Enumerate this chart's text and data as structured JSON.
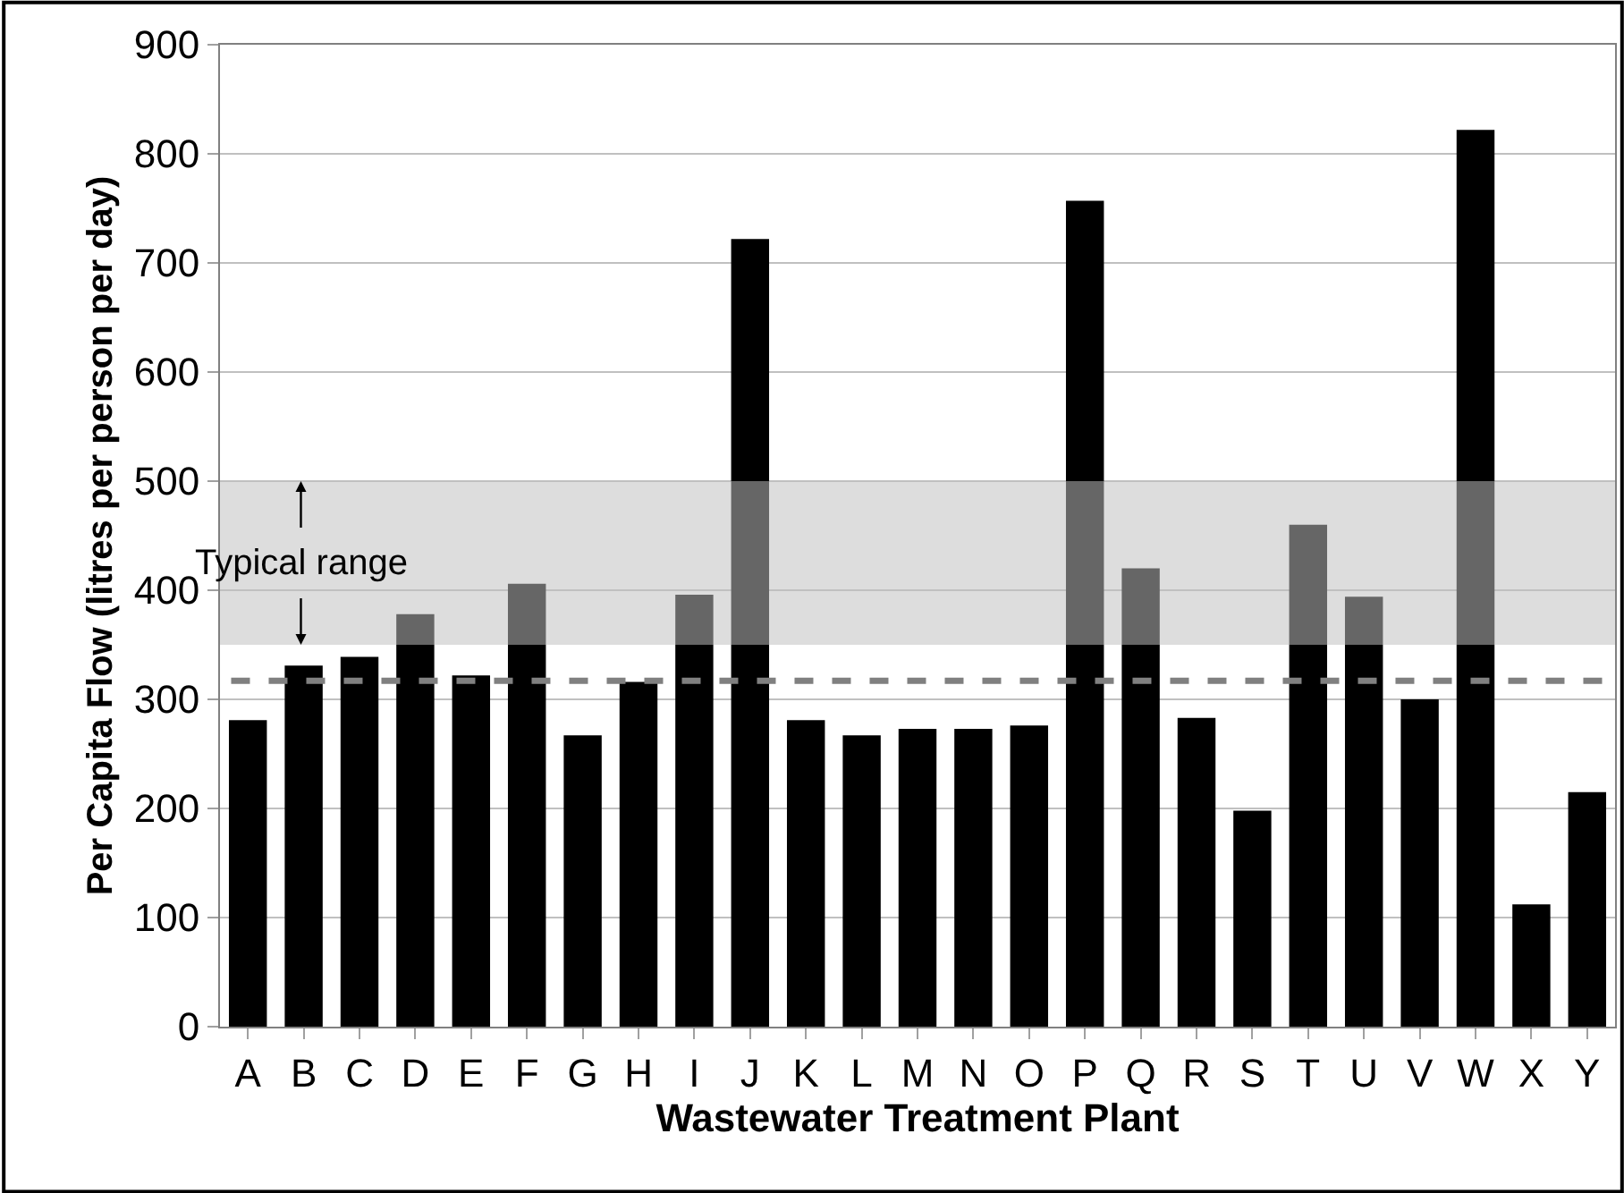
{
  "chart_data": {
    "type": "bar",
    "xlabel": "Wastewater Treatment Plant",
    "ylabel": "Per Capita Flow (litres per person per day)",
    "categories": [
      "A",
      "B",
      "C",
      "D",
      "E",
      "F",
      "G",
      "H",
      "I",
      "J",
      "K",
      "L",
      "M",
      "N",
      "O",
      "P",
      "Q",
      "R",
      "S",
      "T",
      "U",
      "V",
      "W",
      "X",
      "Y"
    ],
    "values": [
      281,
      331,
      339,
      378,
      322,
      406,
      267,
      316,
      396,
      722,
      281,
      267,
      273,
      273,
      276,
      757,
      420,
      283,
      198,
      460,
      394,
      300,
      822,
      112,
      215
    ],
    "color": "#000000",
    "ylim": [
      0,
      900
    ],
    "yticks": [
      0,
      100,
      200,
      300,
      400,
      500,
      600,
      700,
      800,
      900
    ],
    "grid": "y",
    "legend": false,
    "ref_lines": [
      {
        "axis": "y",
        "value": 317,
        "color": "#808080",
        "line_style": "dashed"
      }
    ],
    "bands": [
      {
        "axis": "y",
        "from": 350,
        "to": 500,
        "label": "Typical range",
        "color": "#bfbfbf"
      }
    ]
  }
}
